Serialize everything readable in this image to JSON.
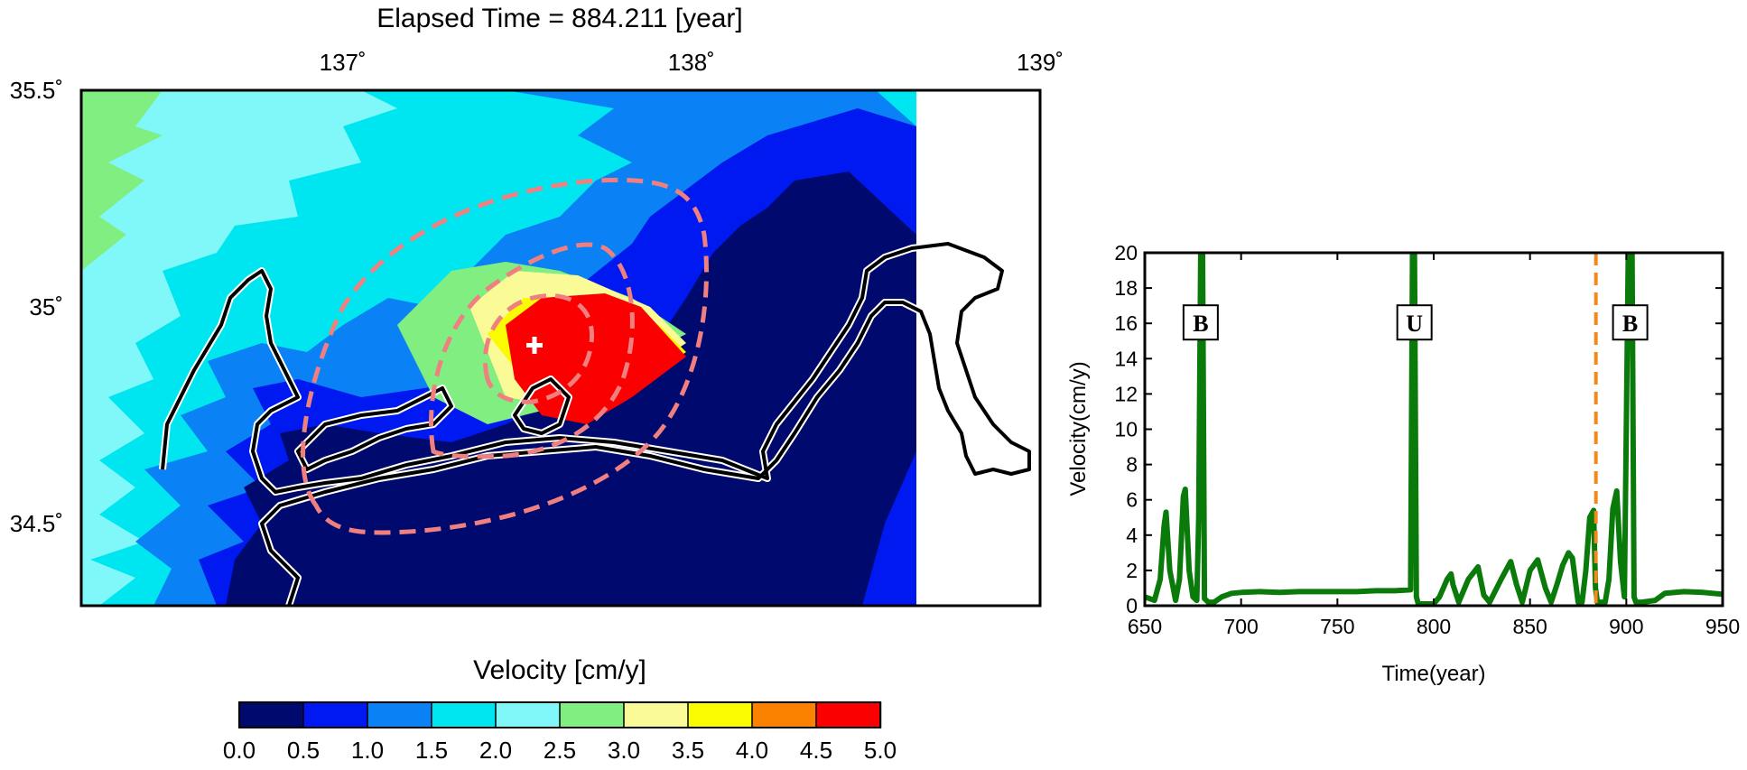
{
  "map": {
    "title": "Elapsed Time = 884.211 [year]",
    "lon_ticks": [
      "137˚",
      "138˚",
      "139˚"
    ],
    "lat_ticks": [
      "35.5˚",
      "35˚",
      "34.5˚"
    ],
    "lon_range": [
      136.25,
      139.0
    ],
    "lat_range": [
      34.31,
      35.5
    ],
    "epicenter_marker": "cross-icon",
    "contour_color": "#f08080"
  },
  "colorbar": {
    "title": "Velocity [cm/y]",
    "tick_labels": [
      "0.0",
      "0.5",
      "1.0",
      "1.5",
      "2.0",
      "2.5",
      "3.0",
      "3.5",
      "4.0",
      "4.5",
      "5.0"
    ],
    "colors": [
      "#000a6e",
      "#0019f0",
      "#0a82f5",
      "#00e6f0",
      "#80f8fa",
      "#80ee80",
      "#fafa96",
      "#fafa00",
      "#fa8200",
      "#fa0000"
    ]
  },
  "chart_data": {
    "type": "line",
    "xlabel": "Time(year)",
    "ylabel": "Velocity(cm/y)",
    "xlim": [
      650,
      950
    ],
    "ylim": [
      0,
      20
    ],
    "x_ticks": [
      650,
      700,
      750,
      800,
      850,
      900,
      950
    ],
    "y_ticks": [
      0,
      2,
      4,
      6,
      8,
      10,
      12,
      14,
      16,
      18,
      20
    ],
    "grid": false,
    "line_color": "#0a7a0a",
    "current_time_marker": {
      "x": 884.211,
      "color": "#f08a1e"
    },
    "event_labels": [
      {
        "x": 679,
        "label": "B"
      },
      {
        "x": 790,
        "label": "U"
      },
      {
        "x": 902,
        "label": "B"
      }
    ],
    "series": [
      {
        "x": [
          650,
          655,
          658,
          660,
          661,
          663,
          666,
          668,
          670,
          671,
          673,
          675,
          677,
          678,
          679,
          680,
          681,
          683,
          686,
          690,
          695,
          700,
          710,
          720,
          730,
          740,
          750,
          760,
          770,
          780,
          788,
          789,
          790,
          791,
          792,
          795,
          800,
          803,
          807,
          809,
          810,
          813,
          818,
          823,
          826,
          829,
          835,
          840,
          843,
          846,
          850,
          854,
          858,
          861,
          864,
          867,
          870,
          872,
          875,
          877,
          879,
          881,
          883,
          884,
          885,
          887,
          889,
          891,
          893,
          895,
          897,
          899,
          901,
          902,
          903,
          904,
          905,
          908,
          915,
          920,
          930,
          940,
          950
        ],
        "y": [
          0.5,
          0.3,
          1.5,
          4.5,
          5.3,
          2.0,
          0.3,
          1.5,
          6.2,
          6.6,
          2.0,
          0.5,
          0.3,
          5.0,
          20,
          20,
          0.4,
          0.2,
          0.2,
          0.5,
          0.7,
          0.75,
          0.8,
          0.75,
          0.8,
          0.8,
          0.8,
          0.8,
          0.85,
          0.85,
          0.9,
          20,
          20,
          0.5,
          0.1,
          0.1,
          0.1,
          0.5,
          1.5,
          1.8,
          1.2,
          0.2,
          1.5,
          2.2,
          0.6,
          0.2,
          1.5,
          2.5,
          1.2,
          0.2,
          2.0,
          2.6,
          1.0,
          0.2,
          1.2,
          2.3,
          3.0,
          2.7,
          0.2,
          0.2,
          2.0,
          5.0,
          5.4,
          1.0,
          0.2,
          0.2,
          0.2,
          1.5,
          5.5,
          6.5,
          2.5,
          0.5,
          20,
          20,
          20,
          0.5,
          0.2,
          0.2,
          0.3,
          0.7,
          0.8,
          0.75,
          0.65
        ]
      }
    ]
  }
}
